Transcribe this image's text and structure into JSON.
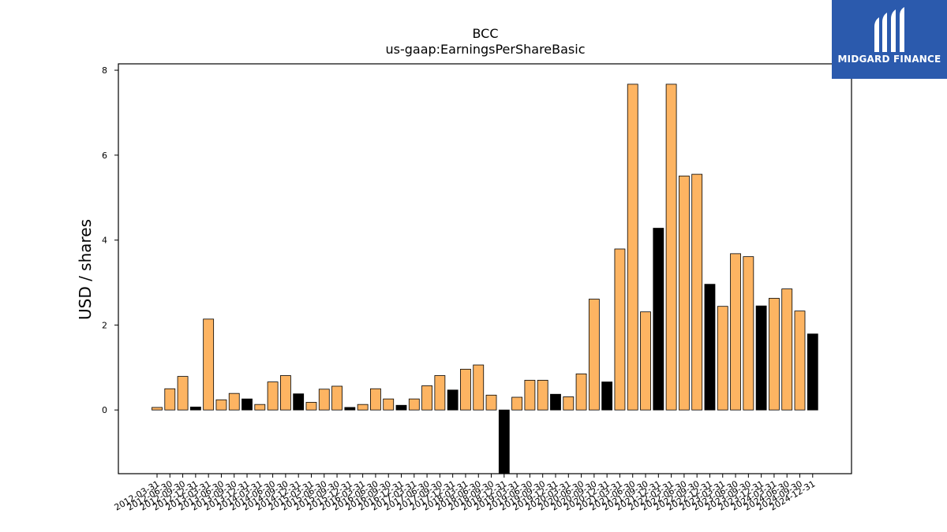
{
  "brand": {
    "name": "MIDGARD FINANCE",
    "bg_color": "#2b5aad"
  },
  "chart_data": {
    "type": "bar",
    "title": "BCC",
    "subtitle": "us-gaap:EarningsPerShareBasic",
    "xlabel": "",
    "ylabel": "USD / shares",
    "ylim": [
      -1.5,
      8.15
    ],
    "yticks": [
      0,
      2,
      4,
      6,
      8
    ],
    "grid": false,
    "colors": {
      "quarterly": "#fdb462",
      "annual": "#000000"
    },
    "categories": [
      "2012-03-31",
      "2012-06-30",
      "2012-09-30",
      "2012-12-31",
      "2013-03-31",
      "2013-06-30",
      "2013-09-30",
      "2013-12-31",
      "2014-03-31",
      "2014-06-30",
      "2014-09-30",
      "2014-12-31",
      "2015-03-31",
      "2015-06-30",
      "2015-09-30",
      "2015-12-31",
      "2016-03-31",
      "2016-06-30",
      "2016-09-30",
      "2016-12-31",
      "2017-03-31",
      "2017-06-30",
      "2017-09-30",
      "2017-12-31",
      "2018-03-31",
      "2018-06-30",
      "2018-09-30",
      "2018-12-31",
      "2019-03-31",
      "2019-06-30",
      "2019-09-30",
      "2019-12-31",
      "2020-03-31",
      "2020-06-30",
      "2020-09-30",
      "2020-12-31",
      "2021-03-31",
      "2021-06-30",
      "2021-09-30",
      "2021-12-31",
      "2022-03-31",
      "2022-06-30",
      "2022-09-30",
      "2022-12-31",
      "2023-03-31",
      "2023-06-30",
      "2023-09-30",
      "2023-12-31",
      "2024-03-31",
      "2024-06-30",
      "2024-09-30",
      "2024-12-31"
    ],
    "series": [
      {
        "values": [
          0.06,
          0.5,
          0.79,
          0.07,
          2.14,
          0.24,
          0.39,
          0.26,
          0.13,
          0.66,
          0.81,
          0.38,
          0.18,
          0.49,
          0.56,
          0.06,
          0.13,
          0.5,
          0.26,
          0.11,
          0.26,
          0.57,
          0.81,
          0.47,
          0.96,
          1.06,
          0.35,
          -1.55,
          0.3,
          0.7,
          0.7,
          0.37,
          0.31,
          0.85,
          2.61,
          0.66,
          3.79,
          7.67,
          2.31,
          4.28,
          7.67,
          5.51,
          5.55,
          2.96,
          2.44,
          3.68,
          3.61,
          2.45,
          2.63,
          2.85,
          2.33,
          1.79
        ],
        "is_annual": [
          false,
          false,
          false,
          true,
          false,
          false,
          false,
          true,
          false,
          false,
          false,
          true,
          false,
          false,
          false,
          true,
          false,
          false,
          false,
          true,
          false,
          false,
          false,
          true,
          false,
          false,
          false,
          true,
          false,
          false,
          false,
          true,
          false,
          false,
          false,
          true,
          false,
          false,
          false,
          true,
          false,
          false,
          false,
          true,
          false,
          false,
          false,
          true,
          false,
          false,
          false,
          true
        ]
      }
    ]
  }
}
